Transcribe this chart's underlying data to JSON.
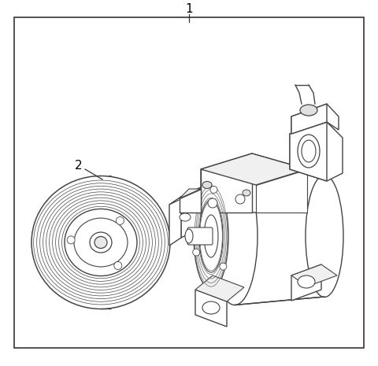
{
  "background_color": "#ffffff",
  "border_color": "#555555",
  "line_color": "#444444",
  "label_color": "#000000",
  "part1_label": "1",
  "part2_label": "2",
  "fig_width": 4.8,
  "fig_height": 4.65,
  "dpi": 100
}
